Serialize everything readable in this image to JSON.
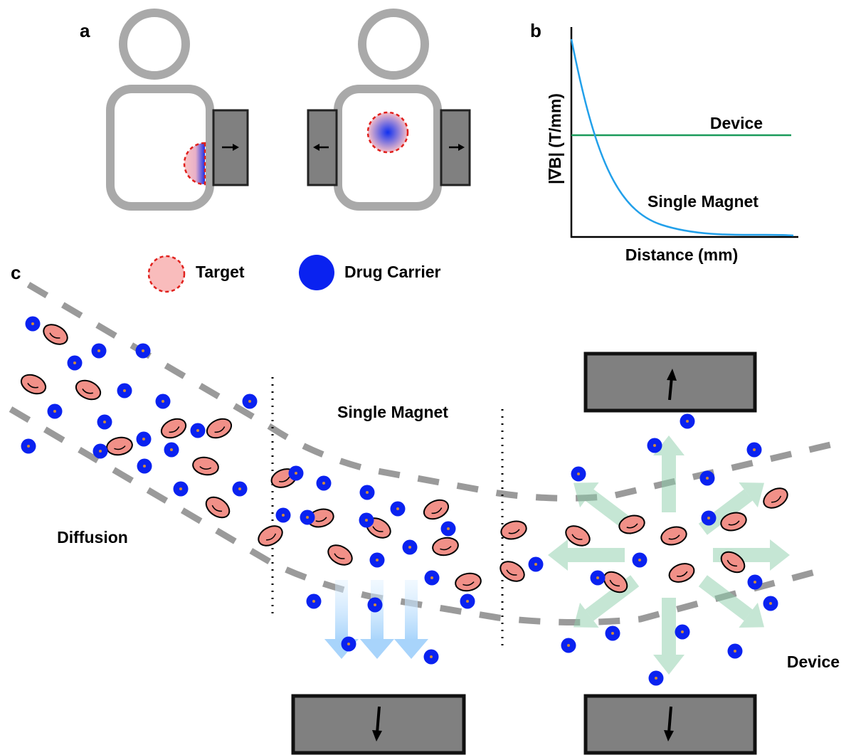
{
  "panels": {
    "a": {
      "label": "a"
    },
    "b": {
      "label": "b",
      "y_axis_label": "|∇B| (T/mm)",
      "x_axis_label": "Distance (mm)",
      "curves": [
        "Device",
        "Single Magnet"
      ]
    },
    "c": {
      "label": "c",
      "regions": [
        "Diffusion",
        "Single Magnet",
        "Device"
      ]
    }
  },
  "legend": [
    "Target",
    "Drug Carrier"
  ]
}
